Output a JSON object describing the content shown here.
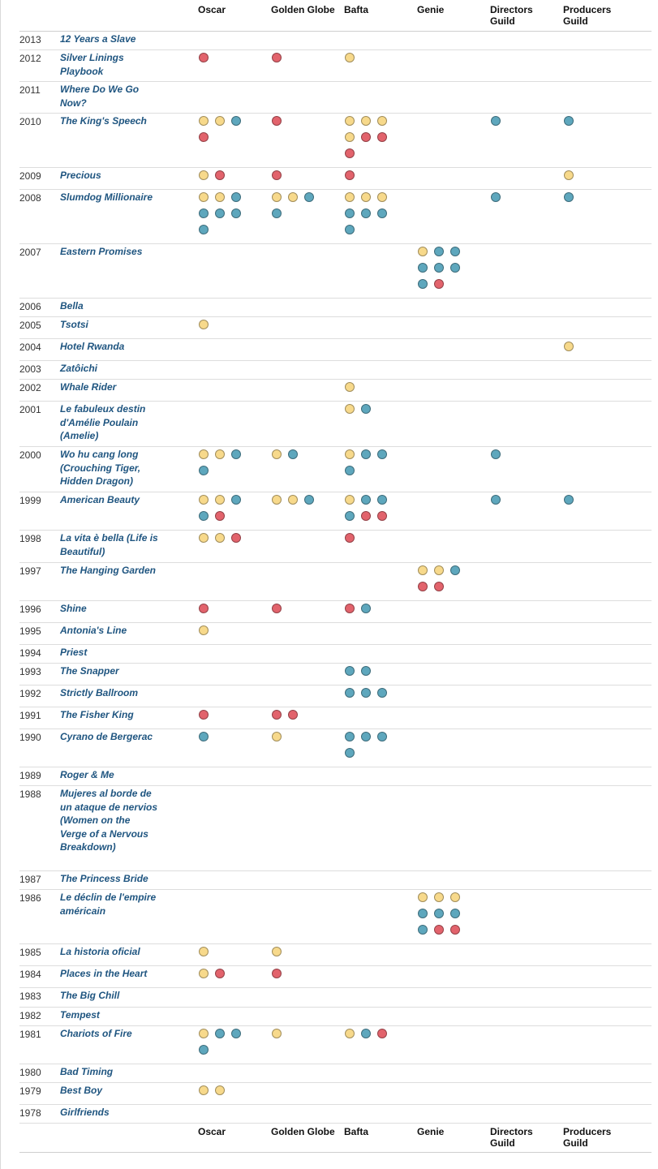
{
  "columns": [
    "Oscar",
    "Golden Globe",
    "Bafta",
    "Genie",
    "Directors Guild",
    "Producers Guild"
  ],
  "legend_colors": {
    "y": "#f7d98b",
    "b": "#5ea7bd",
    "r": "#e2636c"
  },
  "rows": [
    {
      "year": "2013",
      "title": "12 Years a Slave",
      "awards": [
        [],
        [],
        [],
        [],
        [],
        []
      ]
    },
    {
      "year": "2012",
      "title": "Silver Linings Playbook",
      "awards": [
        [
          "r"
        ],
        [
          "r"
        ],
        [
          "y"
        ],
        [],
        [],
        []
      ]
    },
    {
      "year": "2011",
      "title": "Where Do We Go Now?",
      "awards": [
        [],
        [],
        [],
        [],
        [],
        []
      ]
    },
    {
      "year": "2010",
      "title": "The King's Speech",
      "awards": [
        [
          "y",
          "y",
          "b",
          "r"
        ],
        [
          "r"
        ],
        [
          "y",
          "y",
          "y",
          "y",
          "r",
          "r",
          "r"
        ],
        [],
        [
          "b"
        ],
        [
          "b"
        ]
      ]
    },
    {
      "year": "2009",
      "title": "Precious",
      "awards": [
        [
          "y",
          "r"
        ],
        [
          "r"
        ],
        [
          "r"
        ],
        [],
        [],
        [
          "y"
        ]
      ]
    },
    {
      "year": "2008",
      "title": "Slumdog Millionaire",
      "awards": [
        [
          "y",
          "y",
          "b",
          "b",
          "b",
          "b",
          "b"
        ],
        [
          "y",
          "y",
          "b",
          "b"
        ],
        [
          "y",
          "y",
          "y",
          "b",
          "b",
          "b",
          "b"
        ],
        [],
        [
          "b"
        ],
        [
          "b"
        ]
      ]
    },
    {
      "year": "2007",
      "title": "Eastern Promises",
      "awards": [
        [],
        [],
        [],
        [
          "y",
          "b",
          "b",
          "b",
          "b",
          "b",
          "b",
          "r"
        ],
        [],
        []
      ]
    },
    {
      "year": "2006",
      "title": "Bella",
      "awards": [
        [],
        [],
        [],
        [],
        [],
        []
      ]
    },
    {
      "year": "2005",
      "title": "Tsotsi",
      "awards": [
        [
          "y"
        ],
        [],
        [],
        [],
        [],
        []
      ]
    },
    {
      "year": "2004",
      "title": "Hotel Rwanda",
      "awards": [
        [],
        [],
        [],
        [],
        [],
        [
          "y"
        ]
      ]
    },
    {
      "year": "2003",
      "title": "Zatôichi",
      "awards": [
        [],
        [],
        [],
        [],
        [],
        []
      ]
    },
    {
      "year": "2002",
      "title": "Whale Rider",
      "awards": [
        [],
        [],
        [
          "y"
        ],
        [],
        [],
        []
      ]
    },
    {
      "year": "2001",
      "title": "Le fabuleux destin d'Amélie Poulain (Amelie)",
      "awards": [
        [],
        [],
        [
          "y",
          "b"
        ],
        [],
        [],
        []
      ]
    },
    {
      "year": "2000",
      "title": "Wo hu cang long (Crouching Tiger, Hidden Dragon)",
      "awards": [
        [
          "y",
          "y",
          "b",
          "b"
        ],
        [
          "y",
          "b"
        ],
        [
          "y",
          "b",
          "b",
          "b"
        ],
        [],
        [
          "b"
        ],
        []
      ]
    },
    {
      "year": "1999",
      "title": "American Beauty",
      "awards": [
        [
          "y",
          "y",
          "b",
          "b",
          "r"
        ],
        [
          "y",
          "y",
          "b"
        ],
        [
          "y",
          "b",
          "b",
          "b",
          "r",
          "r"
        ],
        [],
        [
          "b"
        ],
        [
          "b"
        ]
      ]
    },
    {
      "year": "1998",
      "title": "La vita è bella (Life is Beautiful)",
      "awards": [
        [
          "y",
          "y",
          "r"
        ],
        [],
        [
          "r"
        ],
        [],
        [],
        []
      ]
    },
    {
      "year": "1997",
      "title": "The Hanging Garden",
      "awards": [
        [],
        [],
        [],
        [
          "y",
          "y",
          "b",
          "r",
          "r"
        ],
        [],
        []
      ]
    },
    {
      "year": "1996",
      "title": "Shine",
      "awards": [
        [
          "r"
        ],
        [
          "r"
        ],
        [
          "r",
          "b"
        ],
        [],
        [],
        []
      ]
    },
    {
      "year": "1995",
      "title": "Antonia's Line",
      "awards": [
        [
          "y"
        ],
        [],
        [],
        [],
        [],
        []
      ]
    },
    {
      "year": "1994",
      "title": "Priest",
      "awards": [
        [],
        [],
        [],
        [],
        [],
        []
      ]
    },
    {
      "year": "1993",
      "title": "The Snapper",
      "awards": [
        [],
        [],
        [
          "b",
          "b"
        ],
        [],
        [],
        []
      ]
    },
    {
      "year": "1992",
      "title": "Strictly Ballroom",
      "awards": [
        [],
        [],
        [
          "b",
          "b",
          "b"
        ],
        [],
        [],
        []
      ]
    },
    {
      "year": "1991",
      "title": "The Fisher King",
      "awards": [
        [
          "r"
        ],
        [
          "r",
          "r"
        ],
        [],
        [],
        [],
        []
      ]
    },
    {
      "year": "1990",
      "title": "Cyrano de Bergerac",
      "awards": [
        [
          "b"
        ],
        [
          "y"
        ],
        [
          "b",
          "b",
          "b",
          "b"
        ],
        [],
        [],
        []
      ]
    },
    {
      "year": "1989",
      "title": "Roger & Me",
      "awards": [
        [],
        [],
        [],
        [],
        [],
        []
      ]
    },
    {
      "year": "1988",
      "title": "Mujeres al borde de un ataque de nervios (Women on the Verge of a Nervous Breakdown)",
      "awards": [
        [],
        [],
        [],
        [],
        [],
        []
      ]
    },
    {
      "year": "1987",
      "title": "The Princess Bride",
      "awards": [
        [],
        [],
        [],
        [],
        [],
        []
      ]
    },
    {
      "year": "1986",
      "title": "Le déclin de l'empire américain",
      "awards": [
        [],
        [],
        [],
        [
          "y",
          "y",
          "y",
          "b",
          "b",
          "b",
          "b",
          "r",
          "r"
        ],
        [],
        []
      ]
    },
    {
      "year": "1985",
      "title": "La historia oficial",
      "awards": [
        [
          "y"
        ],
        [
          "y"
        ],
        [],
        [],
        [],
        []
      ]
    },
    {
      "year": "1984",
      "title": "Places in the Heart",
      "awards": [
        [
          "y",
          "r"
        ],
        [
          "r"
        ],
        [],
        [],
        [],
        []
      ]
    },
    {
      "year": "1983",
      "title": "The Big Chill",
      "awards": [
        [],
        [],
        [],
        [],
        [],
        []
      ]
    },
    {
      "year": "1982",
      "title": "Tempest",
      "awards": [
        [],
        [],
        [],
        [],
        [],
        []
      ]
    },
    {
      "year": "1981",
      "title": "Chariots of Fire",
      "awards": [
        [
          "y",
          "b",
          "b",
          "b"
        ],
        [
          "y"
        ],
        [
          "y",
          "b",
          "r"
        ],
        [],
        [],
        []
      ]
    },
    {
      "year": "1980",
      "title": "Bad Timing",
      "awards": [
        [],
        [],
        [],
        [],
        [],
        []
      ]
    },
    {
      "year": "1979",
      "title": "Best Boy",
      "awards": [
        [
          "y",
          "y"
        ],
        [],
        [],
        [],
        [],
        []
      ]
    },
    {
      "year": "1978",
      "title": "Girlfriends",
      "awards": [
        [],
        [],
        [],
        [],
        [],
        []
      ]
    }
  ]
}
